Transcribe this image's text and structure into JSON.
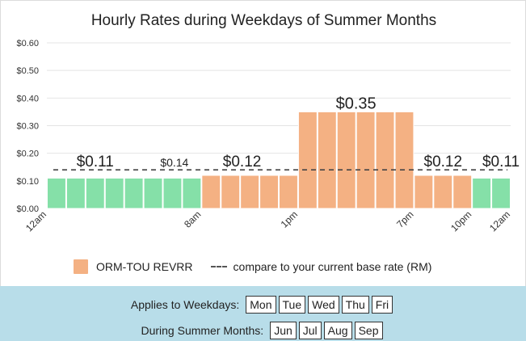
{
  "chart_data": {
    "type": "bar",
    "title": "Hourly Rates during Weekdays of Summer Months",
    "xlabel": "",
    "ylabel": "",
    "ylim": [
      0,
      0.6
    ],
    "y_ticks": [
      "$0.60",
      "$0.50",
      "$0.40",
      "$0.30",
      "$0.20",
      "$0.10",
      "$0.00"
    ],
    "y_tick_values": [
      0.6,
      0.5,
      0.4,
      0.3,
      0.2,
      0.1,
      0.0
    ],
    "x_tick_labels": [
      {
        "label": "12am",
        "hour": 0
      },
      {
        "label": "8am",
        "hour": 8
      },
      {
        "label": "1pm",
        "hour": 13
      },
      {
        "label": "7pm",
        "hour": 19
      },
      {
        "label": "10pm",
        "hour": 22
      },
      {
        "label": "12am",
        "hour": 24
      }
    ],
    "hours": [
      0,
      1,
      2,
      3,
      4,
      5,
      6,
      7,
      8,
      9,
      10,
      11,
      12,
      13,
      14,
      15,
      16,
      17,
      18,
      19,
      20,
      21,
      22,
      23
    ],
    "values": [
      0.11,
      0.11,
      0.11,
      0.11,
      0.11,
      0.11,
      0.11,
      0.11,
      0.12,
      0.12,
      0.12,
      0.12,
      0.12,
      0.35,
      0.35,
      0.35,
      0.35,
      0.35,
      0.35,
      0.12,
      0.12,
      0.12,
      0.11,
      0.11
    ],
    "bar_periods": [
      "off",
      "off",
      "off",
      "off",
      "off",
      "off",
      "off",
      "off",
      "mid",
      "mid",
      "mid",
      "mid",
      "mid",
      "on",
      "on",
      "on",
      "on",
      "on",
      "on",
      "mid",
      "mid",
      "mid",
      "off",
      "off"
    ],
    "period_colors": {
      "off": "#85e0a8",
      "mid": "#f4b183",
      "on": "#f4b183"
    },
    "base_rate": 0.14,
    "rate_labels": [
      {
        "text": "$0.11",
        "hour": 2.5,
        "value": 0.11,
        "size": "large"
      },
      {
        "text": "$0.14",
        "hour": 6.6,
        "value": 0.14,
        "size": "small"
      },
      {
        "text": "$0.12",
        "hour": 10.1,
        "value": 0.12,
        "size": "large"
      },
      {
        "text": "$0.35",
        "hour": 16,
        "value": 0.35,
        "size": "xlarge"
      },
      {
        "text": "$0.12",
        "hour": 20.5,
        "value": 0.12,
        "size": "large"
      },
      {
        "text": "$0.11",
        "hour": 23.5,
        "value": 0.11,
        "size": "large"
      }
    ],
    "legend": [
      {
        "name": "ORM-TOU REVRR",
        "color": "#f4b183",
        "style": "swatch"
      },
      {
        "name": "compare to your current base rate (RM)",
        "color": "#555555",
        "style": "dashed"
      }
    ]
  },
  "filters": {
    "weekdays": {
      "label": "Applies to Weekdays:",
      "options": [
        "Mon",
        "Tue",
        "Wed",
        "Thu",
        "Fri"
      ]
    },
    "months": {
      "label": "During Summer Months:",
      "options": [
        "Jun",
        "Jul",
        "Aug",
        "Sep"
      ]
    }
  }
}
